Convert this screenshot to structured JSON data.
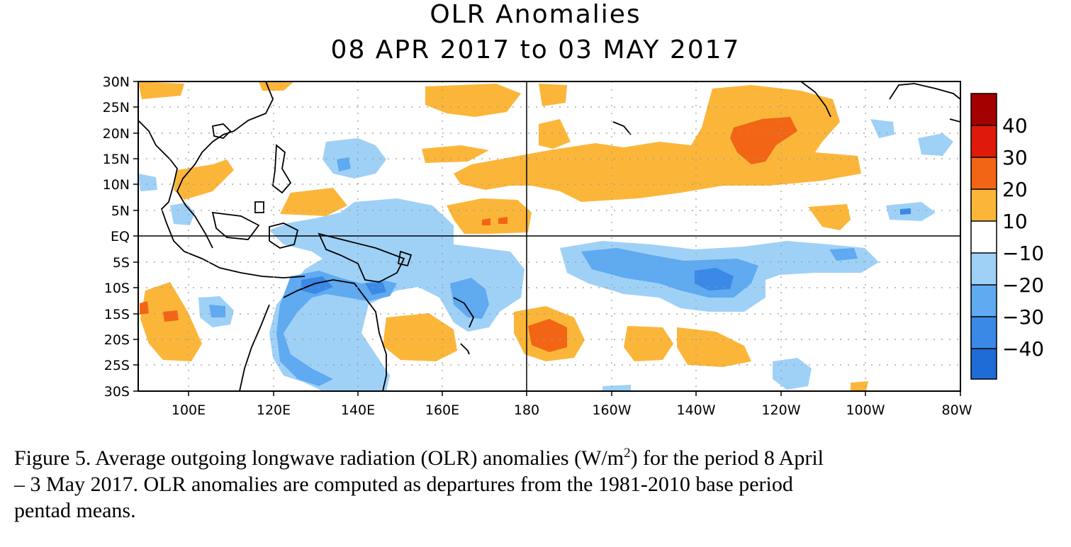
{
  "title": {
    "line1": "OLR Anomalies",
    "line2": "08 APR 2017 to 03 MAY 2017"
  },
  "map": {
    "lon_range": [
      "90E",
      "80W"
    ],
    "lat_range": [
      "30S",
      "30N"
    ],
    "lat_labels": [
      "30N",
      "25N",
      "20N",
      "15N",
      "10N",
      "5N",
      "EQ",
      "5S",
      "10S",
      "15S",
      "20S",
      "25S",
      "30S"
    ],
    "lon_labels": [
      "100E",
      "120E",
      "140E",
      "160E",
      "180",
      "160W",
      "140W",
      "120W",
      "100W",
      "80W"
    ],
    "grid": "dotted",
    "reference_lines": [
      "EQ",
      "180"
    ]
  },
  "colorbar": {
    "labels": [
      "40",
      "30",
      "20",
      "10",
      "−10",
      "−20",
      "−30",
      "−40"
    ],
    "colors": {
      "above_40": "#a50000",
      "30_40": "#e01a0a",
      "20_30": "#f26514",
      "10_20": "#fbb63a",
      "neutral": "#ffffff",
      "minus10_minus20": "#9fd1f7",
      "minus20_minus30": "#5faaf0",
      "minus30_minus40": "#3a89e6",
      "below_minus40": "#1f6cd6"
    }
  },
  "caption": {
    "part1": "Figure 5. Average outgoing longwave radiation (OLR) anomalies (W/m",
    "sup": "2",
    "part2": ") for the period 8 April",
    "line2": "– 3 May 2017. OLR anomalies are computed as departures from the 1981-2010 base period",
    "line3": "pentad means."
  }
}
